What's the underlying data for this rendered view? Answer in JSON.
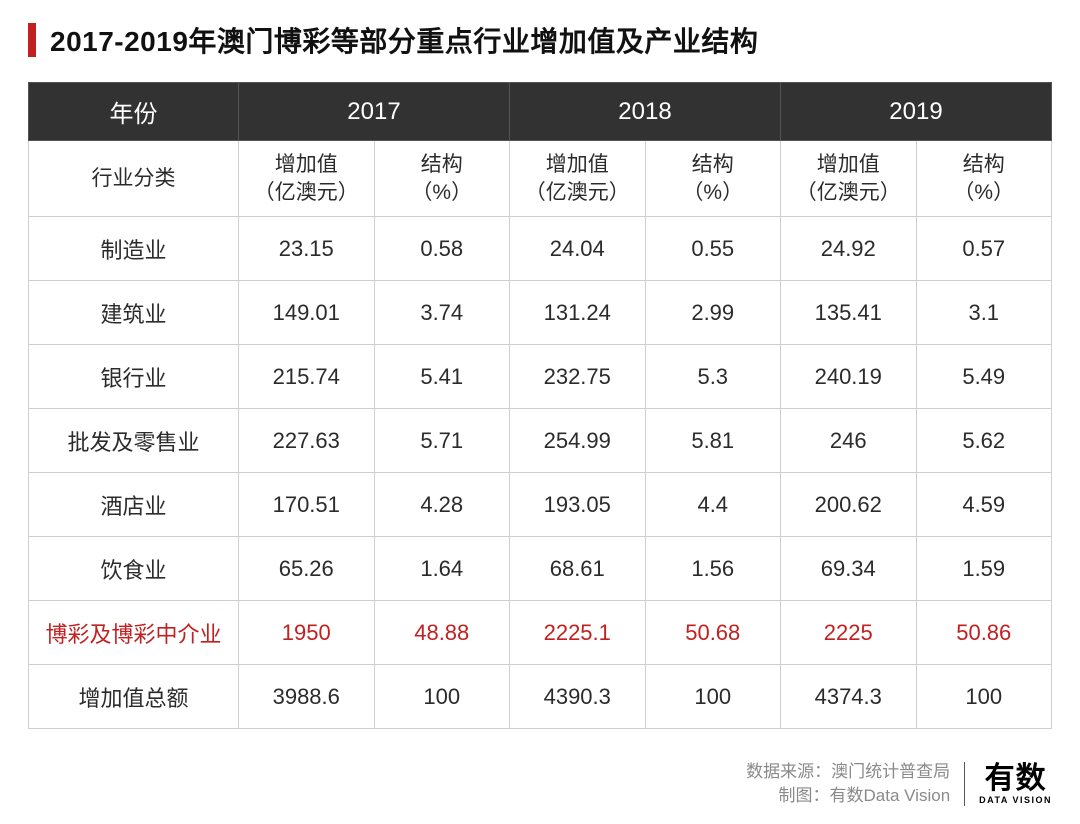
{
  "title": "2017-2019年澳门博彩等部分重点行业增加值及产业结构",
  "colors": {
    "accent_bar": "#c22121",
    "header_bg": "#333233",
    "header_fg": "#ffffff",
    "border": "#cfcfcf",
    "text": "#2b2b2b",
    "highlight": "#c22121",
    "footer_text": "#8a8a8a",
    "background": "#ffffff"
  },
  "typography": {
    "title_fontsize": 28,
    "header_fontsize": 24,
    "subheader_fontsize": 21,
    "cell_fontsize": 22,
    "footer_fontsize": 17,
    "logo_cn_fontsize": 30,
    "logo_en_fontsize": 9
  },
  "table": {
    "type": "table",
    "year_header_label": "年份",
    "years": [
      "2017",
      "2018",
      "2019"
    ],
    "category_header_label": "行业分类",
    "sub_columns": [
      {
        "line1": "增加值",
        "line2": "（亿澳元）"
      },
      {
        "line1": "结构",
        "line2": "（%）"
      }
    ],
    "rows": [
      {
        "label": "制造业",
        "cells": [
          "23.15",
          "0.58",
          "24.04",
          "0.55",
          "24.92",
          "0.57"
        ],
        "highlight": false
      },
      {
        "label": "建筑业",
        "cells": [
          "149.01",
          "3.74",
          "131.24",
          "2.99",
          "135.41",
          "3.1"
        ],
        "highlight": false
      },
      {
        "label": "银行业",
        "cells": [
          "215.74",
          "5.41",
          "232.75",
          "5.3",
          "240.19",
          "5.49"
        ],
        "highlight": false
      },
      {
        "label": "批发及零售业",
        "cells": [
          "227.63",
          "5.71",
          "254.99",
          "5.81",
          "246",
          "5.62"
        ],
        "highlight": false
      },
      {
        "label": "酒店业",
        "cells": [
          "170.51",
          "4.28",
          "193.05",
          "4.4",
          "200.62",
          "4.59"
        ],
        "highlight": false
      },
      {
        "label": "饮食业",
        "cells": [
          "65.26",
          "1.64",
          "68.61",
          "1.56",
          "69.34",
          "1.59"
        ],
        "highlight": false
      },
      {
        "label": "博彩及博彩中介业",
        "cells": [
          "1950",
          "48.88",
          "2225.1",
          "50.68",
          "2225",
          "50.86"
        ],
        "highlight": true
      },
      {
        "label": "增加值总额",
        "cells": [
          "3988.6",
          "100",
          "4390.3",
          "100",
          "4374.3",
          "100"
        ],
        "highlight": false
      }
    ]
  },
  "footer": {
    "source_label": "数据来源：",
    "source_value": "澳门统计普查局",
    "chart_label": "制图：",
    "chart_value": "有数Data Vision",
    "logo_cn": "有数",
    "logo_en": "DATA VISION"
  }
}
